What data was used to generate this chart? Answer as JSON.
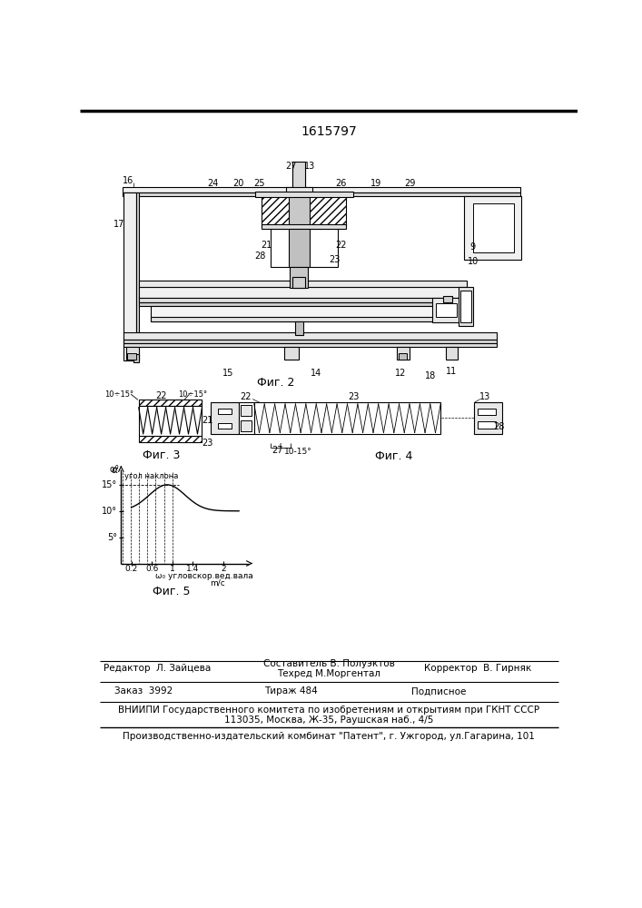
{
  "patent_number": "1615797",
  "editor_line": "Редактор  Л. Зайцева",
  "composer_line1": "Составитель В. Полуэктов",
  "composer_line2": "Техред М.Моргентал",
  "corrector_line": "Корректор  В. Гирняк",
  "order_line": "Заказ  3992",
  "tirage_line": "Тираж 484",
  "podpisnoe": "Подписное",
  "vniiipi_line": "ВНИИПИ Государственного комитета по изобретениям и открытиям при ГКНТ СССР",
  "address_line": "113035, Москва, Ж-35, Раушская наб., 4/5",
  "publisher_line": "Производственно-издательский комбинат \"Патент\", г. Ужгород, ул.Гагарина, 101",
  "fig2_label": "Фиг. 2",
  "fig3_label": "Фиг. 3",
  "fig4_label": "Фиг. 4",
  "fig5_label": "Фиг. 5",
  "bg_color": "#ffffff"
}
